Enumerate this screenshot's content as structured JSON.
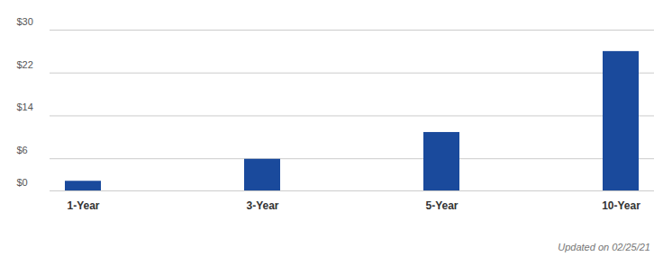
{
  "chart_data": {
    "type": "bar",
    "categories": [
      "1-Year",
      "3-Year",
      "5-Year",
      "10-Year"
    ],
    "values": [
      1.8,
      5.9,
      10.9,
      26.0
    ],
    "color": "#1a4a9c",
    "ylim": [
      0,
      30
    ],
    "yticks": [
      {
        "value": 0,
        "label": "$0"
      },
      {
        "value": 6,
        "label": "$6"
      },
      {
        "value": 14,
        "label": "$14"
      },
      {
        "value": 22,
        "label": "$22"
      },
      {
        "value": 30,
        "label": "$30"
      }
    ],
    "grid": true,
    "caption": "Updated on 02/25/21"
  }
}
